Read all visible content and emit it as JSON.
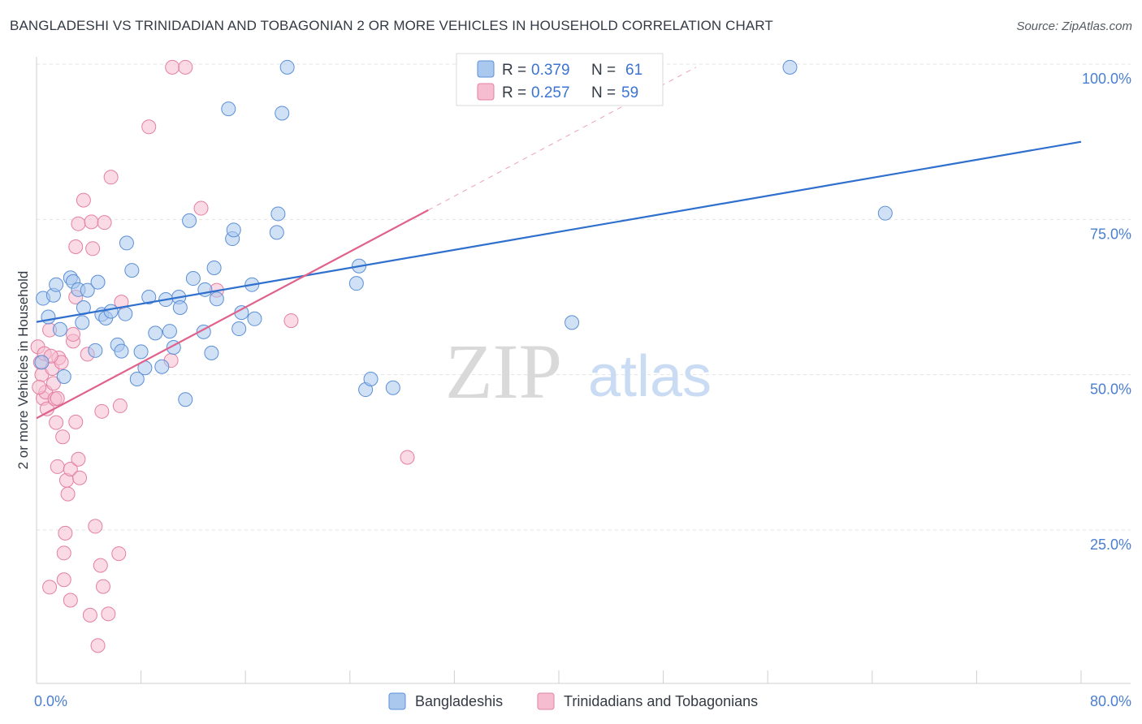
{
  "title": "BANGLADESHI VS TRINIDADIAN AND TOBAGONIAN 2 OR MORE VEHICLES IN HOUSEHOLD CORRELATION CHART",
  "source": "Source: ZipAtlas.com",
  "watermark": {
    "zip": "ZIP",
    "atlas": "atlas"
  },
  "colors": {
    "blue_fill": "#aac8ee",
    "blue_stroke": "#5b8fd6",
    "blue_line": "#2f6fcd",
    "pink_fill": "#f6bccf",
    "pink_stroke": "#e47fa0",
    "pink_line": "#e0628c",
    "axis_text": "#4a7fd0"
  },
  "stats": [
    {
      "r_label": "R = ",
      "r_value": "0.379",
      "n_label": "N = ",
      "n_value": "61"
    },
    {
      "r_label": "R = ",
      "r_value": "0.257",
      "n_label": "N = ",
      "n_value": "59"
    }
  ],
  "chart_data": {
    "type": "scatter",
    "title": "BANGLADESHI VS TRINIDADIAN AND TOBAGONIAN 2 OR MORE VEHICLES IN HOUSEHOLD CORRELATION CHART",
    "xlabel": "",
    "ylabel": "2 or more Vehicles in Household",
    "xlim": [
      0,
      80
    ],
    "ylim": [
      0,
      105
    ],
    "x_tick_labels": [
      "0.0%",
      "80.0%"
    ],
    "y_ticks": [
      {
        "value": 25,
        "label": "25.0%"
      },
      {
        "value": 50,
        "label": "50.0%"
      },
      {
        "value": 75,
        "label": "75.0%"
      },
      {
        "value": 100,
        "label": "100.0%"
      }
    ],
    "grid": true,
    "legend_position": "bottom-center",
    "series": [
      {
        "name": "Bangladeshis",
        "trend": {
          "x": [
            0,
            80
          ],
          "y": [
            58.5,
            87.5
          ],
          "dashed_extension": false
        },
        "points": [
          [
            0.5,
            62.3
          ],
          [
            0.9,
            59.3
          ],
          [
            1.3,
            62.8
          ],
          [
            1.5,
            64.5
          ],
          [
            1.8,
            57.3
          ],
          [
            2.1,
            49.7
          ],
          [
            2.6,
            65.6
          ],
          [
            2.8,
            65.0
          ],
          [
            3.2,
            63.7
          ],
          [
            3.5,
            58.4
          ],
          [
            3.6,
            60.8
          ],
          [
            3.9,
            63.6
          ],
          [
            4.5,
            53.9
          ],
          [
            4.7,
            64.9
          ],
          [
            5.0,
            59.7
          ],
          [
            5.3,
            59.1
          ],
          [
            5.7,
            60.2
          ],
          [
            6.2,
            54.8
          ],
          [
            6.5,
            53.8
          ],
          [
            6.8,
            59.8
          ],
          [
            6.9,
            71.2
          ],
          [
            7.3,
            66.8
          ],
          [
            7.7,
            49.3
          ],
          [
            8.0,
            53.7
          ],
          [
            8.3,
            51.1
          ],
          [
            8.6,
            62.5
          ],
          [
            9.1,
            56.7
          ],
          [
            9.6,
            51.3
          ],
          [
            9.9,
            62.1
          ],
          [
            10.2,
            57.0
          ],
          [
            10.5,
            54.4
          ],
          [
            10.9,
            62.5
          ],
          [
            11.0,
            60.8
          ],
          [
            11.4,
            46.0
          ],
          [
            11.7,
            74.8
          ],
          [
            12.0,
            65.5
          ],
          [
            12.8,
            56.9
          ],
          [
            12.9,
            63.7
          ],
          [
            13.4,
            53.5
          ],
          [
            13.6,
            67.2
          ],
          [
            13.8,
            62.2
          ],
          [
            14.7,
            92.8
          ],
          [
            15.0,
            71.9
          ],
          [
            15.1,
            73.3
          ],
          [
            15.5,
            57.4
          ],
          [
            15.7,
            60.0
          ],
          [
            16.5,
            64.5
          ],
          [
            16.7,
            59.0
          ],
          [
            18.4,
            72.9
          ],
          [
            18.5,
            75.9
          ],
          [
            18.8,
            92.1
          ],
          [
            19.2,
            99.5
          ],
          [
            24.5,
            64.7
          ],
          [
            24.7,
            67.5
          ],
          [
            25.2,
            47.6
          ],
          [
            25.6,
            49.3
          ],
          [
            27.3,
            47.9
          ],
          [
            41.0,
            58.4
          ],
          [
            57.7,
            99.5
          ],
          [
            65.0,
            76.0
          ],
          [
            0.4,
            52.0
          ]
        ]
      },
      {
        "name": "Trinidadians and Tobagonians",
        "trend": {
          "x": [
            0,
            30
          ],
          "y": [
            43.0,
            76.5
          ],
          "dashed_extension": true,
          "extension_to": [
            50.5,
            99.5
          ]
        },
        "points": [
          [
            0.1,
            54.5
          ],
          [
            0.3,
            52.0
          ],
          [
            0.4,
            50.0
          ],
          [
            0.5,
            46.2
          ],
          [
            0.6,
            53.4
          ],
          [
            0.7,
            47.2
          ],
          [
            0.8,
            44.5
          ],
          [
            1.0,
            15.8
          ],
          [
            1.0,
            57.2
          ],
          [
            1.2,
            51.0
          ],
          [
            1.3,
            48.6
          ],
          [
            1.4,
            46.1
          ],
          [
            1.5,
            42.3
          ],
          [
            1.6,
            35.2
          ],
          [
            1.6,
            46.2
          ],
          [
            1.7,
            52.7
          ],
          [
            1.9,
            52.0
          ],
          [
            2.0,
            40.0
          ],
          [
            2.1,
            21.3
          ],
          [
            2.1,
            17.0
          ],
          [
            2.2,
            24.5
          ],
          [
            2.3,
            33.0
          ],
          [
            2.4,
            30.8
          ],
          [
            2.6,
            34.8
          ],
          [
            2.6,
            13.7
          ],
          [
            2.8,
            55.4
          ],
          [
            2.8,
            56.5
          ],
          [
            3.0,
            42.4
          ],
          [
            3.0,
            62.5
          ],
          [
            3.0,
            70.6
          ],
          [
            3.2,
            74.3
          ],
          [
            3.2,
            36.4
          ],
          [
            3.3,
            33.4
          ],
          [
            3.6,
            78.1
          ],
          [
            3.9,
            53.3
          ],
          [
            4.1,
            11.3
          ],
          [
            4.2,
            74.6
          ],
          [
            4.3,
            70.3
          ],
          [
            4.5,
            25.6
          ],
          [
            4.7,
            6.4
          ],
          [
            4.9,
            19.3
          ],
          [
            5.0,
            44.1
          ],
          [
            5.1,
            15.9
          ],
          [
            5.2,
            74.5
          ],
          [
            5.5,
            11.5
          ],
          [
            5.7,
            81.8
          ],
          [
            6.3,
            21.2
          ],
          [
            6.4,
            45.0
          ],
          [
            6.5,
            61.7
          ],
          [
            8.6,
            89.9
          ],
          [
            10.3,
            52.3
          ],
          [
            10.4,
            99.5
          ],
          [
            11.4,
            99.5
          ],
          [
            12.6,
            76.8
          ],
          [
            13.8,
            63.6
          ],
          [
            19.5,
            58.7
          ],
          [
            28.4,
            36.7
          ],
          [
            0.2,
            48.0
          ],
          [
            1.1,
            53.0
          ]
        ]
      }
    ]
  },
  "legend": {
    "items": [
      {
        "label": "Bangladeshis"
      },
      {
        "label": "Trinidadians and Tobagonians"
      }
    ]
  }
}
